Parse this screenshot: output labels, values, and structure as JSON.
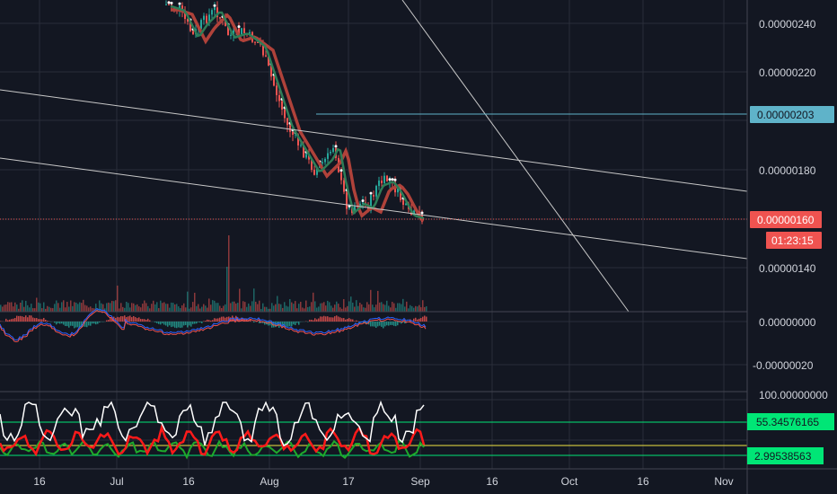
{
  "chart_data": {
    "type": "line",
    "background": "#131722",
    "colors": {
      "grid": "#2a2e39",
      "text": "#d1d4dc",
      "bull": "#26a69a",
      "bear": "#ef5350",
      "ma_slow": "#b0423a",
      "ma_fast": "#2e7d57",
      "trendline": "#c8c8c8",
      "last_price_tag": "#ef5350",
      "marker_tag": "#5fb3c9",
      "level_tag": "#00e676",
      "yellow_line": "#f0e442"
    },
    "x_axis": {
      "tick_labels": [
        "16",
        "Jul",
        "16",
        "Aug",
        "17",
        "Sep",
        "16",
        "Oct",
        "16",
        "Nov"
      ]
    },
    "price_panel": {
      "y_ticks": [
        "0.00000240",
        "0.00000220",
        "0.00000180",
        "0.00000140"
      ],
      "ylim": [
        1.25e-06,
        2.58e-06
      ],
      "last_price": "0.00000160",
      "countdown": "01:23:15",
      "marker_price": "0.00000203"
    },
    "macd_panel": {
      "y_ticks": [
        "0.00000000",
        "-0.00000020"
      ]
    },
    "oscillator_panel": {
      "y_ticks": [
        "100.00000000"
      ],
      "upper_level": "55.34576165",
      "lower_level": "2.99538563"
    }
  }
}
